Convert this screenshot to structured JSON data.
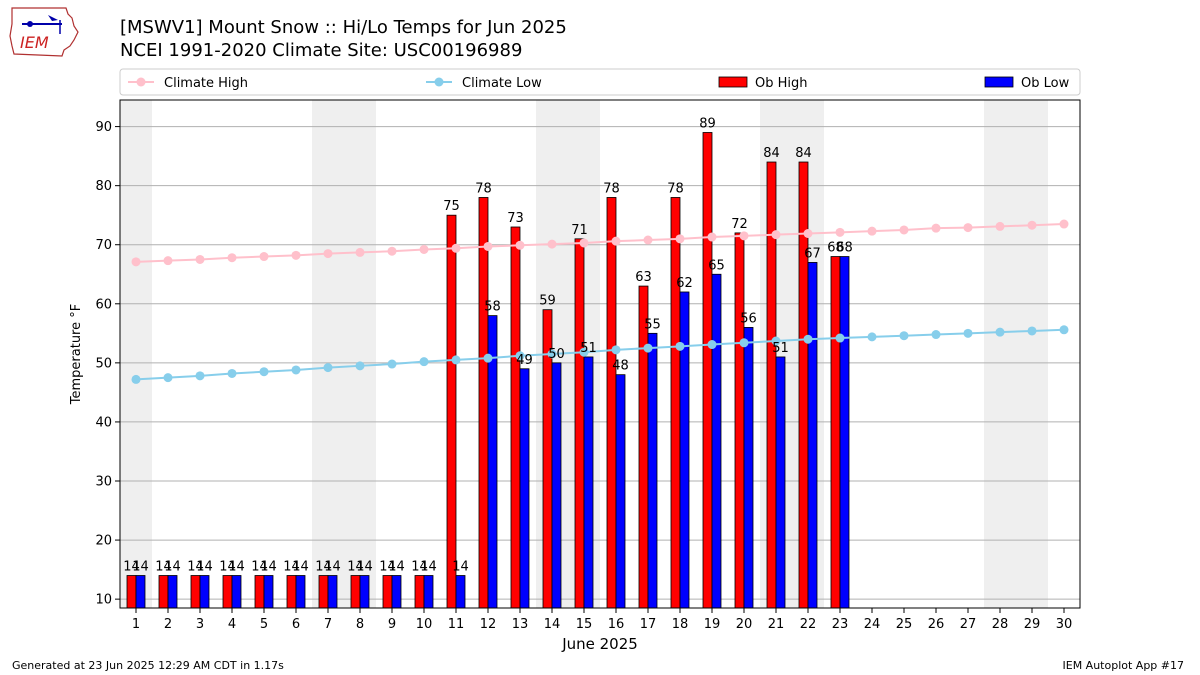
{
  "header": {
    "title_line1": "[MSWV1] Mount Snow :: Hi/Lo Temps for Jun 2025",
    "title_line2": "NCEI 1991-2020 Climate Site: USC00196989"
  },
  "logo": {
    "text": "IEM"
  },
  "footer": {
    "left": "Generated at 23 Jun 2025 12:29 AM CDT in 1.17s",
    "right": "IEM Autoplot App #17"
  },
  "colors": {
    "ob_high": "#ff0000",
    "ob_low": "#0000ff",
    "climate_high": "#ffc0cb",
    "climate_low": "#87ceeb",
    "weekend_band": "#efefef",
    "grid": "#b0b0b0"
  },
  "chart_data": {
    "type": "bar",
    "xlabel": "June 2025",
    "ylabel": "Temperature °F",
    "ylim": [
      8.5,
      94.5
    ],
    "yticks": [
      10,
      20,
      30,
      40,
      50,
      60,
      70,
      80,
      90
    ],
    "grid": "horizontal",
    "legend_position": "top",
    "days": [
      1,
      2,
      3,
      4,
      5,
      6,
      7,
      8,
      9,
      10,
      11,
      12,
      13,
      14,
      15,
      16,
      17,
      18,
      19,
      20,
      21,
      22,
      23,
      24,
      25,
      26,
      27,
      28,
      29,
      30
    ],
    "weekend_bands": [
      [
        1,
        1
      ],
      [
        7,
        8
      ],
      [
        14,
        15
      ],
      [
        21,
        22
      ],
      [
        28,
        29
      ]
    ],
    "series": [
      {
        "name": "Ob High",
        "kind": "bar",
        "values": [
          14,
          14,
          14,
          14,
          14,
          14,
          14,
          14,
          14,
          14,
          75,
          78,
          73,
          59,
          71,
          78,
          63,
          78,
          89,
          72,
          84,
          84,
          68
        ]
      },
      {
        "name": "Ob Low",
        "kind": "bar",
        "values": [
          14,
          14,
          14,
          14,
          14,
          14,
          14,
          14,
          14,
          14,
          14,
          58,
          49,
          50,
          51,
          48,
          55,
          62,
          65,
          56,
          51,
          67,
          68
        ]
      },
      {
        "name": "Climate High",
        "kind": "line",
        "values": [
          67.1,
          67.3,
          67.5,
          67.8,
          68.0,
          68.2,
          68.5,
          68.7,
          68.9,
          69.2,
          69.4,
          69.7,
          69.9,
          70.1,
          70.3,
          70.6,
          70.8,
          71.0,
          71.3,
          71.5,
          71.7,
          71.9,
          72.1,
          72.3,
          72.5,
          72.8,
          72.9,
          73.1,
          73.3,
          73.5
        ]
      },
      {
        "name": "Climate Low",
        "kind": "line",
        "values": [
          47.2,
          47.5,
          47.8,
          48.2,
          48.5,
          48.8,
          49.2,
          49.5,
          49.8,
          50.2,
          50.5,
          50.8,
          51.2,
          51.5,
          51.8,
          52.2,
          52.5,
          52.8,
          53.1,
          53.4,
          53.7,
          54.0,
          54.2,
          54.4,
          54.6,
          54.8,
          55.0,
          55.2,
          55.4,
          55.6
        ]
      }
    ]
  }
}
